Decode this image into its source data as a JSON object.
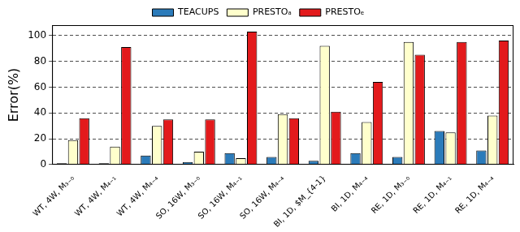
{
  "chart_data": {
    "type": "bar",
    "y_label": "Error(%)",
    "categories": [
      "WT, 4W, M₃₋₀",
      "WT, 4W, M₄₋₁",
      "WT, 4W, M₄₋₄",
      "SO, 16W, M₃₋₀",
      "SO, 16W, M₄₋₁",
      "SO, 16W, M₄₋₄",
      "BI, 1D, $M_{4-1}",
      "BI, 1D, M₄₋₄",
      "RE, 1D, M₃₋₀",
      "RE, 1D, M₄₋₁",
      "RE, 1D, M₄₋₄"
    ],
    "series": [
      {
        "name": "TEACUPS",
        "color": "#2b7bba",
        "values": [
          1,
          1,
          7,
          2,
          9,
          6,
          3,
          9,
          6,
          26,
          11
        ]
      },
      {
        "name": "PRESTOₐ",
        "color": "#ffffcc",
        "values": [
          19,
          14,
          30,
          10,
          5,
          39,
          92,
          33,
          95,
          25,
          38
        ]
      },
      {
        "name": "PRESTOₑ",
        "color": "#e31a1c",
        "values": [
          36,
          91,
          35,
          35,
          103,
          36,
          41,
          64,
          85,
          95,
          96
        ]
      }
    ],
    "ylim": [
      0,
      108
    ],
    "yticks": [
      0,
      20,
      40,
      60,
      80,
      100
    ],
    "grid": true,
    "legend": "top"
  }
}
